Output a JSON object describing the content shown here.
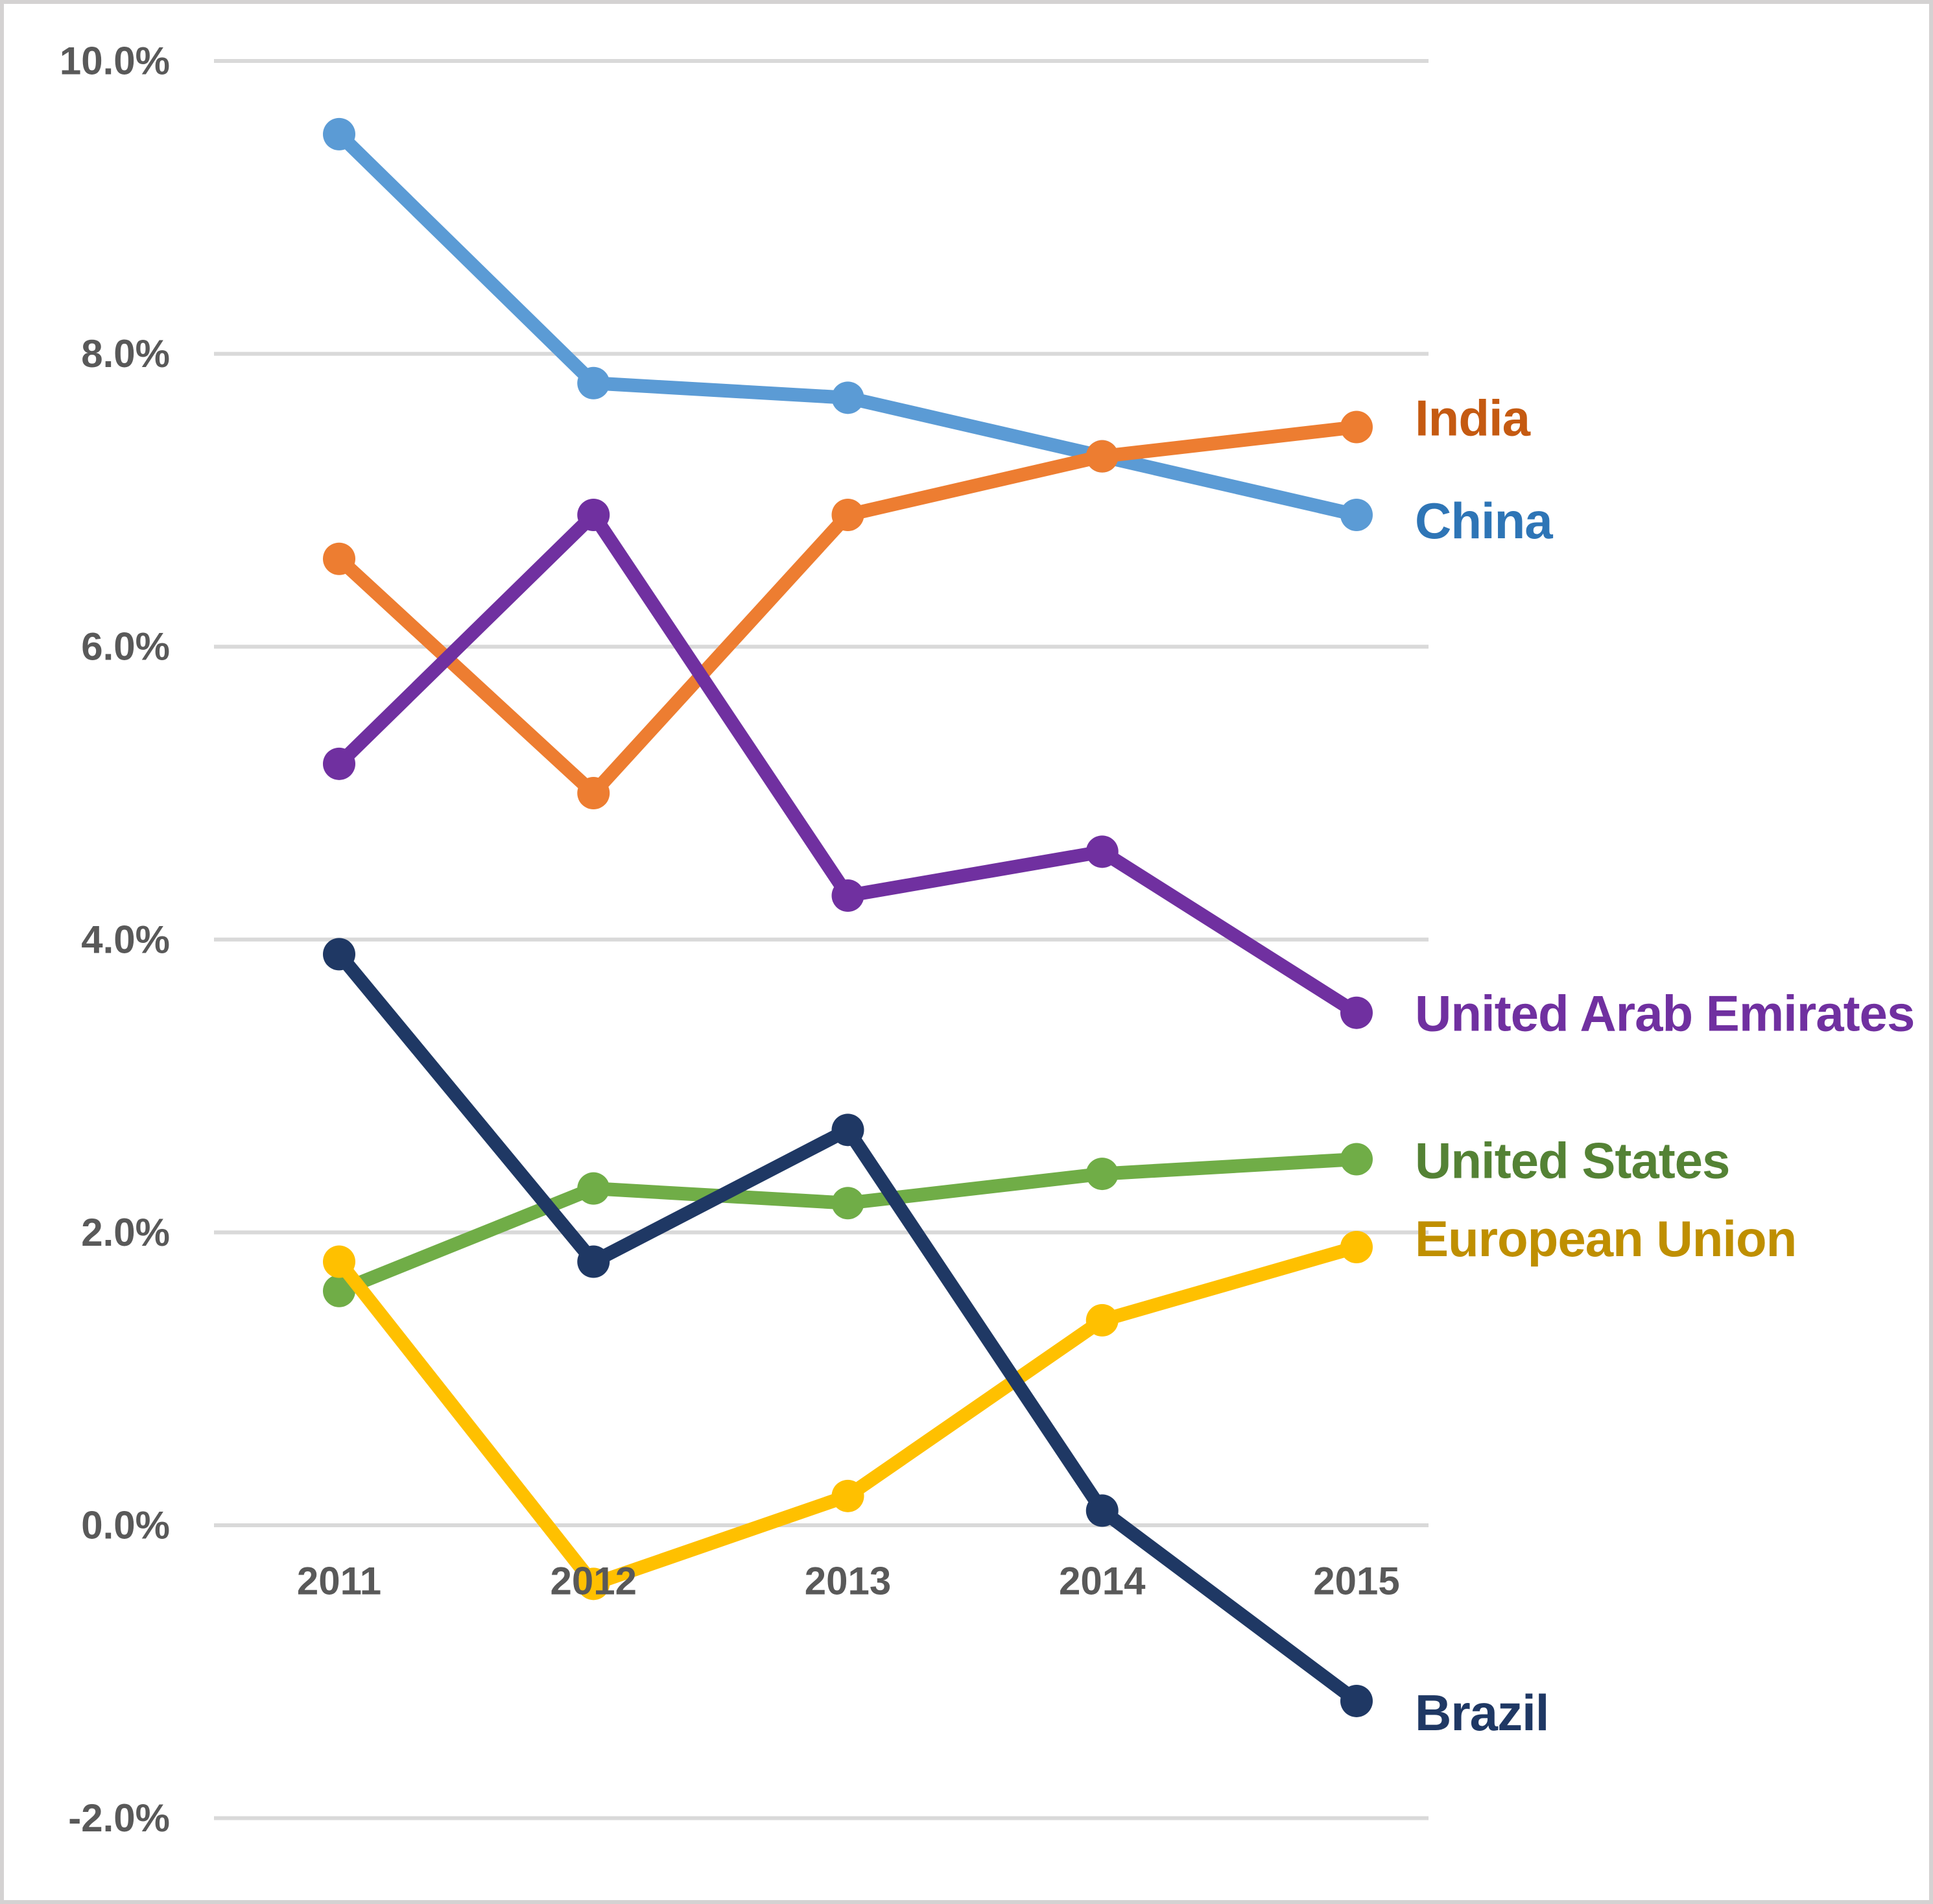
{
  "chart_data": {
    "type": "line",
    "title": "",
    "xlabel": "",
    "ylabel": "",
    "x_categories": [
      "2011",
      "2012",
      "2013",
      "2014",
      "2015"
    ],
    "ylim": [
      -2,
      10
    ],
    "grid": true,
    "legend_position": "right-of-line-ends",
    "y_ticks": [
      {
        "value": 10,
        "label": "10.0%"
      },
      {
        "value": 8,
        "label": "8.0%"
      },
      {
        "value": 6,
        "label": "6.0%"
      },
      {
        "value": 4,
        "label": "4.0%"
      },
      {
        "value": 2,
        "label": "2.0%"
      },
      {
        "value": 0,
        "label": "0.0%"
      },
      {
        "value": -2,
        "label": "-2.0%"
      }
    ],
    "series": [
      {
        "name": "China",
        "line_color": "#5B9BD5",
        "label_color": "#2E75B6",
        "values": [
          9.5,
          7.8,
          7.7,
          7.3,
          6.9
        ],
        "label_offset_y": 9
      },
      {
        "name": "India",
        "line_color": "#ED7D31",
        "label_color": "#C55A11",
        "values": [
          6.6,
          5.0,
          6.9,
          7.3,
          7.5
        ],
        "label_offset_y": -14
      },
      {
        "name": "United Arab Emirates",
        "line_color": "#7030A0",
        "label_color": "#7030A0",
        "values": [
          5.2,
          6.9,
          4.3,
          4.6,
          3.5
        ],
        "label_offset_y": 1
      },
      {
        "name": "United States",
        "line_color": "#70AD47",
        "label_color": "#548235",
        "values": [
          1.6,
          2.3,
          2.2,
          2.4,
          2.5
        ],
        "label_offset_y": 2
      },
      {
        "name": "European Union",
        "line_color": "#FFC000",
        "label_color": "#BF8F00",
        "values": [
          1.8,
          -0.4,
          0.2,
          1.4,
          1.9
        ],
        "label_offset_y": -13
      },
      {
        "name": "Brazil",
        "line_color": "#1F3864",
        "label_color": "#1F3864",
        "values": [
          3.9,
          1.8,
          2.7,
          0.1,
          -1.2
        ],
        "label_offset_y": 18
      }
    ],
    "colors": {
      "gridline": "#D9D9D9",
      "axis_text": "#595959",
      "background": "#FFFFFF",
      "frame_border": "#D4D2D2"
    }
  }
}
